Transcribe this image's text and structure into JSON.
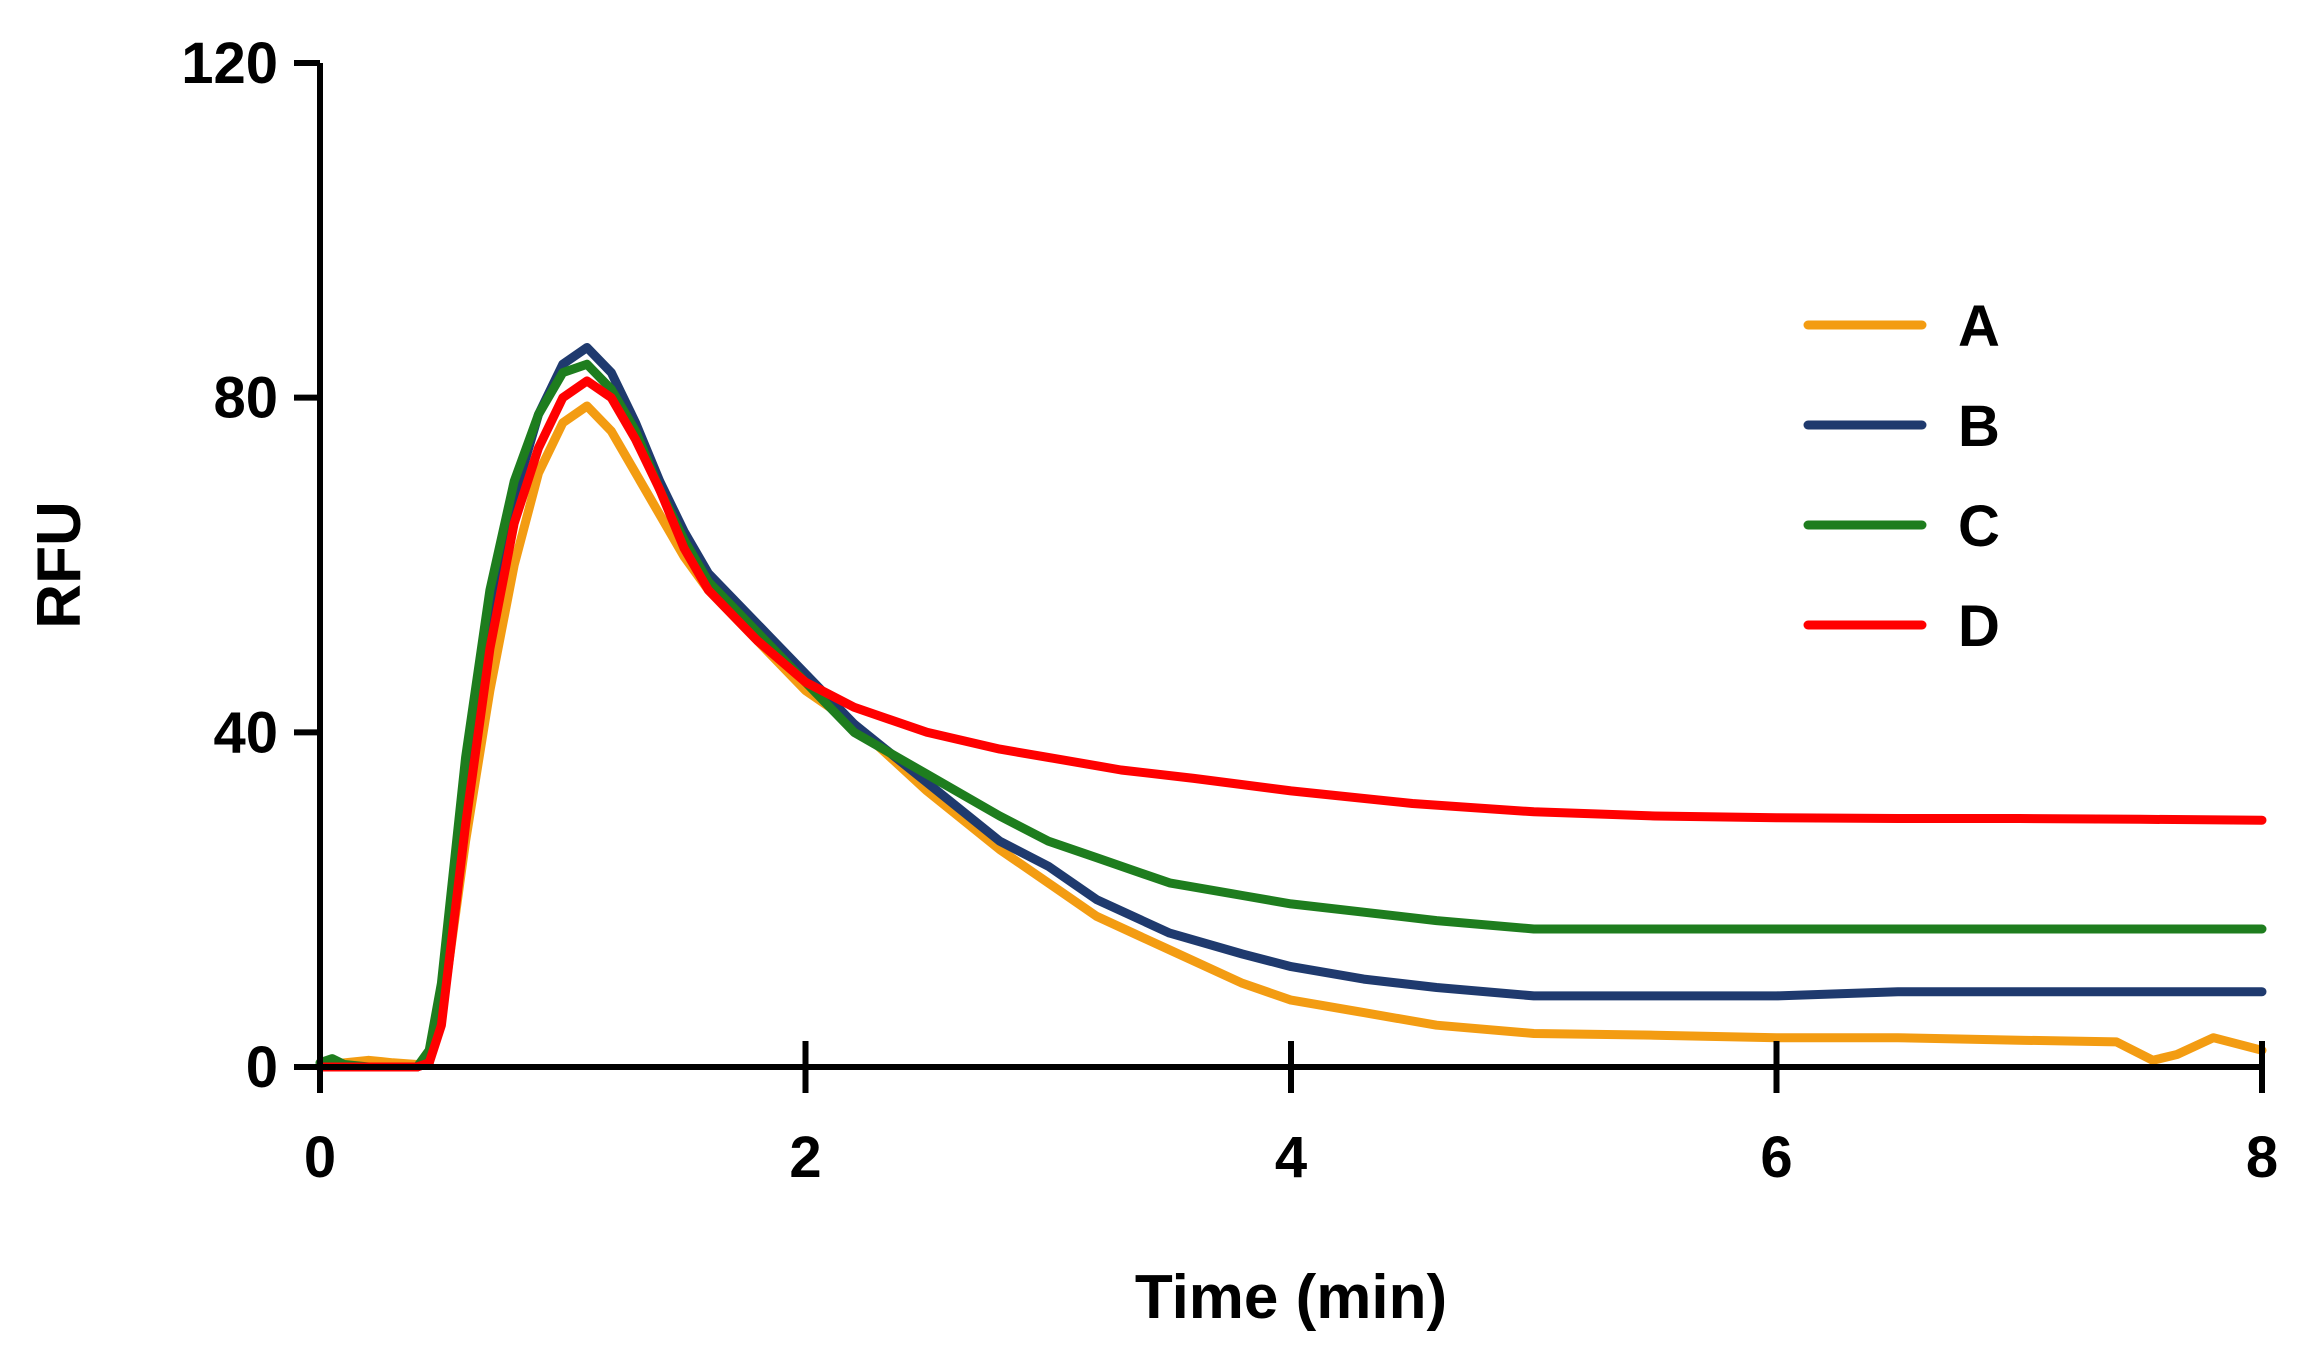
{
  "chart_data": {
    "type": "line",
    "title": "",
    "xlabel": "Time (min)",
    "ylabel": "RFU",
    "xlim": [
      0,
      8
    ],
    "ylim": [
      0,
      120
    ],
    "xticks": [
      0,
      2,
      4,
      6,
      8
    ],
    "yticks": [
      0,
      40,
      80,
      120
    ],
    "grid": false,
    "legend_position": "right",
    "series": [
      {
        "name": "A",
        "color": "#f39c12",
        "x": [
          0,
          0.1,
          0.2,
          0.3,
          0.4,
          0.45,
          0.5,
          0.6,
          0.7,
          0.8,
          0.9,
          1.0,
          1.1,
          1.2,
          1.3,
          1.4,
          1.5,
          1.6,
          1.8,
          2.0,
          2.2,
          2.5,
          2.8,
          3.0,
          3.2,
          3.5,
          3.8,
          4.0,
          4.3,
          4.6,
          5.0,
          5.5,
          6.0,
          6.5,
          7.0,
          7.4,
          7.55,
          7.65,
          7.8,
          8.0
        ],
        "values": [
          0,
          0.5,
          0.8,
          0.5,
          0.3,
          0.5,
          6,
          27,
          45,
          60,
          71,
          77,
          79,
          76,
          71,
          66,
          61,
          57,
          51,
          45,
          41,
          33,
          26,
          22,
          18,
          14,
          10,
          8,
          6.5,
          5,
          4,
          3.8,
          3.5,
          3.5,
          3.2,
          3.0,
          0.8,
          1.5,
          3.5,
          2.0
        ]
      },
      {
        "name": "B",
        "color": "#1f3a6e",
        "x": [
          0,
          0.1,
          0.2,
          0.3,
          0.4,
          0.45,
          0.5,
          0.6,
          0.7,
          0.8,
          0.9,
          1.0,
          1.1,
          1.2,
          1.3,
          1.4,
          1.5,
          1.6,
          1.8,
          2.0,
          2.2,
          2.5,
          2.8,
          3.0,
          3.2,
          3.5,
          3.8,
          4.0,
          4.3,
          4.6,
          5.0,
          5.5,
          6.0,
          6.5,
          7.0,
          7.5,
          8.0
        ],
        "values": [
          0,
          0,
          0,
          0,
          0,
          0.5,
          8,
          34,
          54,
          68,
          78,
          84,
          86,
          83,
          77,
          70,
          64,
          59,
          53,
          47,
          41,
          34,
          27,
          24,
          20,
          16,
          13.5,
          12,
          10.5,
          9.5,
          8.5,
          8.5,
          8.5,
          9,
          9,
          9,
          9
        ]
      },
      {
        "name": "C",
        "color": "#1e7d1e",
        "x": [
          0,
          0.05,
          0.1,
          0.2,
          0.3,
          0.4,
          0.45,
          0.5,
          0.6,
          0.7,
          0.8,
          0.9,
          1.0,
          1.1,
          1.2,
          1.3,
          1.4,
          1.5,
          1.6,
          1.8,
          2.0,
          2.2,
          2.5,
          2.8,
          3.0,
          3.2,
          3.5,
          3.8,
          4.0,
          4.3,
          4.6,
          5.0,
          5.5,
          6.0,
          6.5,
          7.0,
          7.5,
          8.0
        ],
        "values": [
          0.5,
          1.0,
          0.3,
          0,
          0,
          0,
          2,
          10,
          37,
          57,
          70,
          78,
          83,
          84,
          81,
          76,
          69,
          63,
          58,
          52,
          46,
          40,
          35,
          30,
          27,
          25,
          22,
          20.5,
          19.5,
          18.5,
          17.5,
          16.5,
          16.5,
          16.5,
          16.5,
          16.5,
          16.5,
          16.5
        ]
      },
      {
        "name": "D",
        "color": "#ff0000",
        "x": [
          0,
          0.1,
          0.2,
          0.3,
          0.4,
          0.45,
          0.5,
          0.6,
          0.7,
          0.8,
          0.9,
          1.0,
          1.1,
          1.2,
          1.3,
          1.4,
          1.5,
          1.6,
          1.8,
          2.0,
          2.2,
          2.5,
          2.8,
          3.0,
          3.3,
          3.6,
          4.0,
          4.5,
          5.0,
          5.5,
          6.0,
          6.5,
          7.0,
          7.5,
          8.0
        ],
        "values": [
          0,
          0,
          0,
          0,
          0,
          0.5,
          5,
          29,
          50,
          65,
          74,
          80,
          82,
          80,
          75,
          69,
          62,
          57,
          51,
          46,
          43,
          40,
          38,
          37,
          35.5,
          34.5,
          33,
          31.5,
          30.5,
          30,
          29.8,
          29.7,
          29.7,
          29.6,
          29.5
        ]
      }
    ]
  }
}
